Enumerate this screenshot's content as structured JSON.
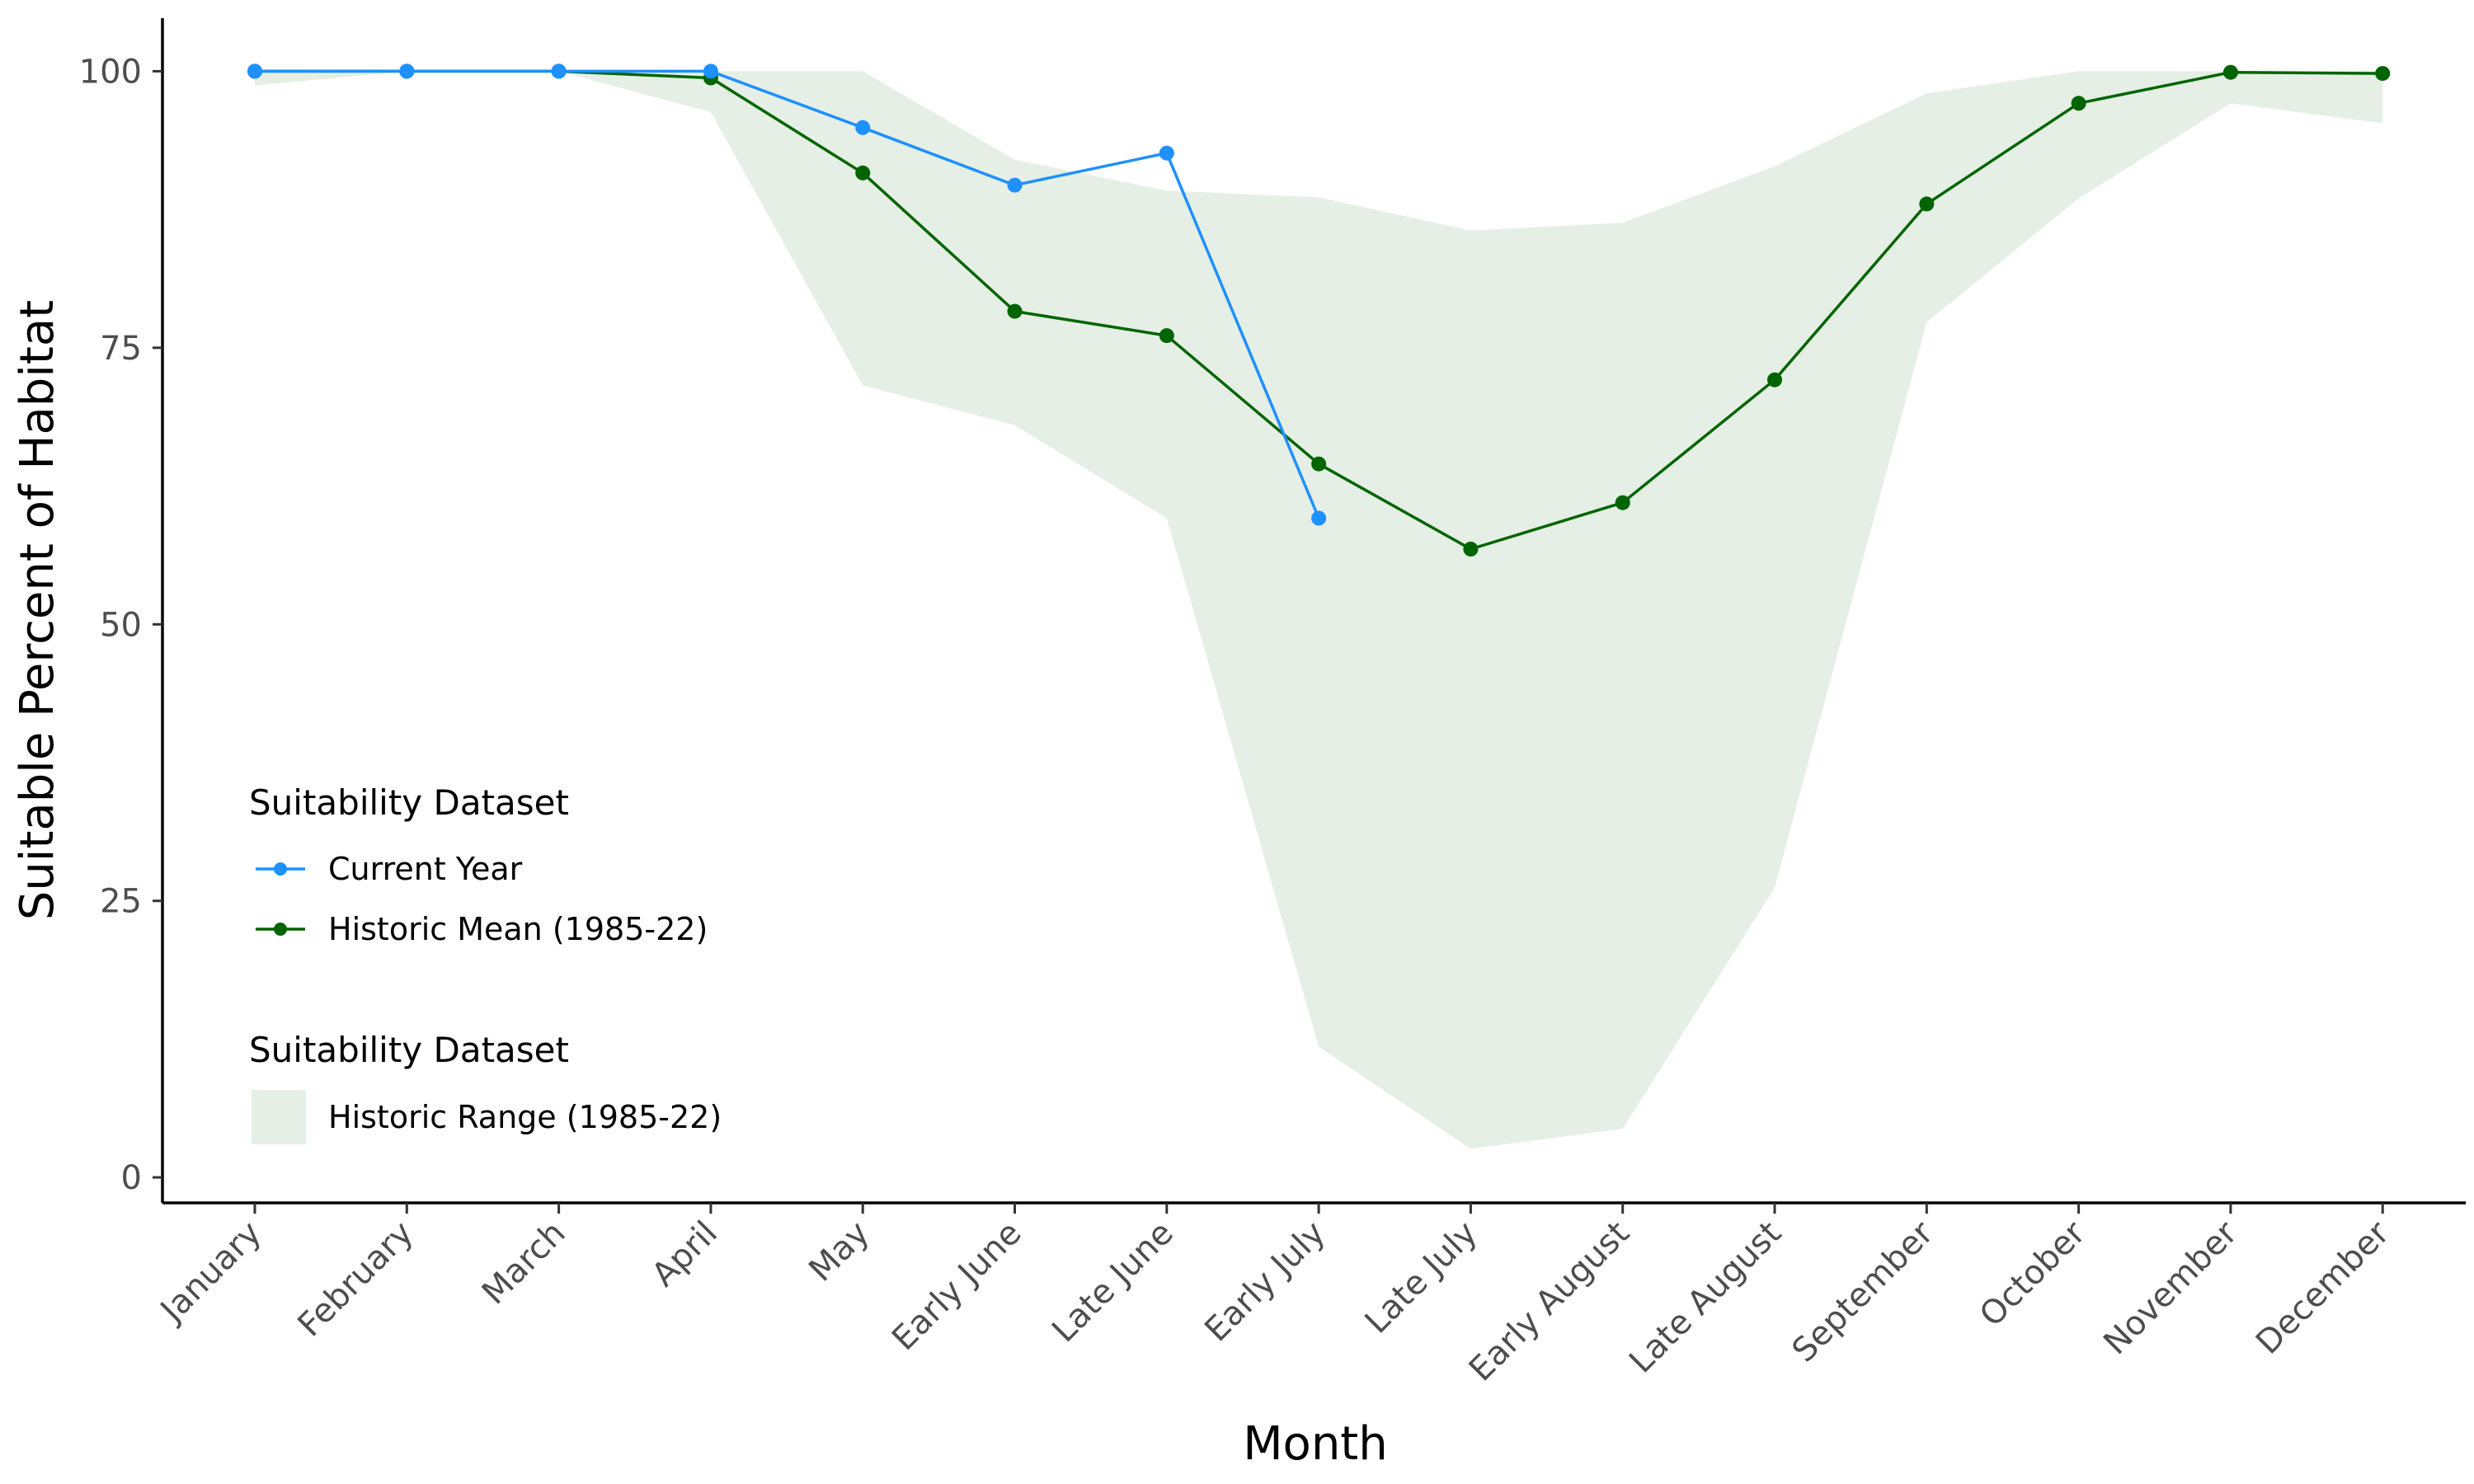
{
  "chart_data": {
    "type": "line",
    "categories": [
      "January",
      "February",
      "March",
      "April",
      "May",
      "Early June",
      "Late June",
      "Early July",
      "Late July",
      "Early August",
      "Late August",
      "September",
      "October",
      "November",
      "December"
    ],
    "xlabel": "Month",
    "ylabel": "Suitable Percent of Habitat",
    "ylim": [
      -2.3,
      104.8
    ],
    "yticks": [
      0,
      25,
      50,
      75,
      100
    ],
    "grid": false,
    "legend_position": "bottom-left inside plot",
    "series": [
      {
        "name": "Current Year",
        "color": "#1e90ff",
        "values": [
          100,
          100,
          100,
          100,
          94.9,
          89.7,
          92.6,
          59.6,
          null,
          null,
          null,
          null,
          null,
          null,
          null
        ]
      },
      {
        "name": "Historic Mean (1985-22)",
        "color": "#006400",
        "values": [
          100,
          100,
          100,
          99.4,
          90.8,
          78.3,
          76.1,
          64.5,
          56.8,
          61.0,
          72.1,
          88.0,
          97.1,
          99.9,
          99.8
        ]
      }
    ],
    "ribbon": {
      "name": "Historic Range (1985-22)",
      "color": "#e5efe5",
      "lower": [
        98.7,
        100,
        100,
        96.3,
        71.6,
        68.0,
        59.6,
        11.8,
        2.6,
        4.4,
        26.2,
        77.3,
        88.5,
        97.1,
        95.3
      ],
      "upper": [
        100,
        100,
        100,
        100,
        100,
        92.0,
        89.2,
        88.6,
        85.6,
        86.3,
        91.4,
        98.0,
        100,
        100,
        100
      ]
    },
    "legends": [
      {
        "title": "Suitability Dataset",
        "items": [
          "Current Year",
          "Historic Mean (1985-22)"
        ]
      },
      {
        "title": "Suitability Dataset",
        "items": [
          "Historic Range (1985-22)"
        ]
      }
    ]
  }
}
